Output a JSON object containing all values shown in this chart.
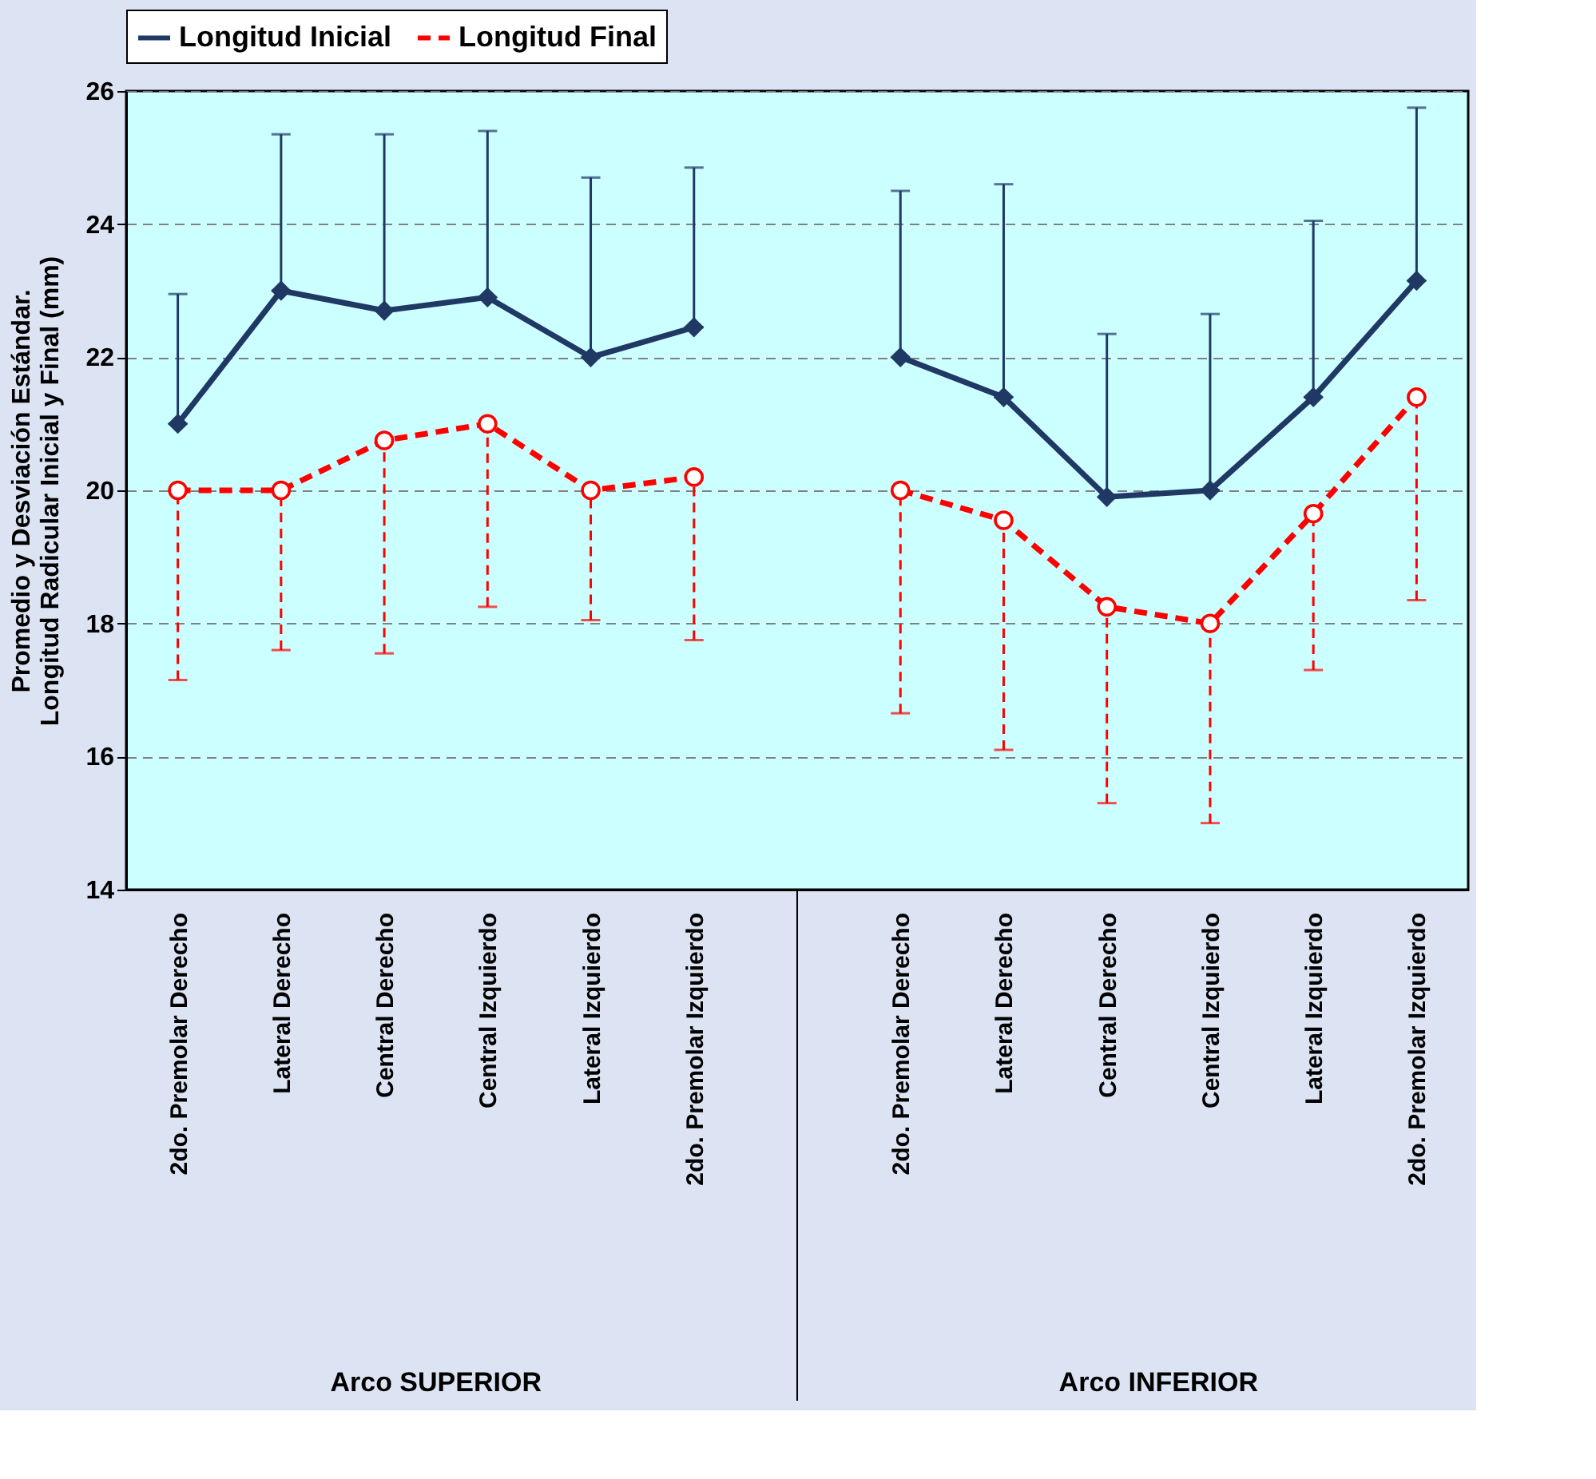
{
  "chart_data": {
    "type": "line",
    "ylabel": "Promedio y Desviación Estándar.\nLongitud Radicular Inicial y Final (mm)",
    "categories": [
      "2do. Premolar Derecho",
      "Lateral Derecho",
      "Central Derecho",
      "Central Izquierdo",
      "Lateral Izquierdo",
      "2do. Premolar Izquierdo",
      null,
      "2do. Premolar Derecho",
      "Lateral Derecho",
      "Central Derecho",
      "Central Izquierdo",
      "Lateral Izquierdo",
      "2do. Premolar Izquierdo"
    ],
    "series": [
      {
        "name": "Longitud Inicial",
        "color": "#1f3864",
        "marker": "diamond",
        "line_style": "solid",
        "values": [
          21.0,
          23.0,
          22.7,
          22.9,
          22.0,
          22.45,
          null,
          22.0,
          21.4,
          19.9,
          20.0,
          21.4,
          23.15
        ],
        "errors": [
          [
            21.0,
            22.95
          ],
          [
            23.0,
            25.35
          ],
          [
            22.7,
            25.35
          ],
          [
            22.9,
            25.4
          ],
          [
            22.0,
            24.7
          ],
          [
            22.45,
            24.85
          ],
          null,
          [
            22.0,
            24.5
          ],
          [
            21.4,
            24.6
          ],
          [
            19.9,
            22.35
          ],
          [
            20.0,
            22.65
          ],
          [
            21.4,
            24.05
          ],
          [
            23.15,
            25.75
          ]
        ]
      },
      {
        "name": "Longitud Final",
        "color": "#ff0000",
        "marker": "circle",
        "line_style": "dashed",
        "values": [
          20.0,
          20.0,
          20.75,
          21.0,
          20.0,
          20.2,
          null,
          20.0,
          19.55,
          18.25,
          18.0,
          19.65,
          21.4
        ],
        "errors": [
          [
            17.15,
            20.0
          ],
          [
            17.6,
            20.0
          ],
          [
            17.55,
            20.75
          ],
          [
            18.25,
            21.0
          ],
          [
            18.05,
            20.0
          ],
          [
            17.75,
            20.2
          ],
          null,
          [
            16.65,
            20.0
          ],
          [
            16.1,
            19.55
          ],
          [
            15.3,
            18.25
          ],
          [
            15.0,
            18.0
          ],
          [
            17.3,
            19.65
          ],
          [
            18.35,
            21.4
          ]
        ]
      }
    ],
    "ylim": [
      14,
      26
    ],
    "yticks": [
      14,
      16,
      18,
      20,
      22,
      24,
      26
    ],
    "grid": "y",
    "legend": "top",
    "annotations": [
      "Arco SUPERIOR",
      "Arco INFERIOR"
    ]
  }
}
